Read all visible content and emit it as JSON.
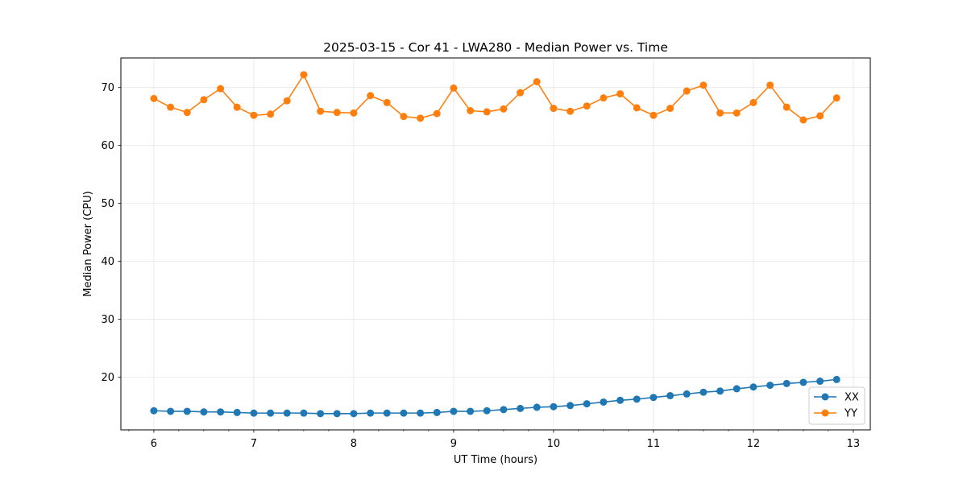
{
  "chart_data": {
    "type": "line",
    "title": "2025-03-15 - Cor 41 - LWA280 - Median Power vs. Time",
    "xlabel": "UT Time (hours)",
    "ylabel": "Median Power (CPU)",
    "xlim": [
      5.67,
      13.17
    ],
    "ylim": [
      10.9,
      75.1
    ],
    "xticks": [
      6,
      7,
      8,
      9,
      10,
      11,
      12,
      13
    ],
    "xtick_labels": [
      "6",
      "7",
      "8",
      "9",
      "10",
      "11",
      "12",
      "13"
    ],
    "xminor_step": 0.25,
    "yticks": [
      20,
      30,
      40,
      50,
      60,
      70
    ],
    "ytick_labels": [
      "20",
      "30",
      "40",
      "50",
      "60",
      "70"
    ],
    "grid": true,
    "legend_position": "lower-right",
    "x": [
      6.0,
      6.167,
      6.333,
      6.5,
      6.667,
      6.833,
      7.0,
      7.167,
      7.333,
      7.5,
      7.667,
      7.833,
      8.0,
      8.167,
      8.333,
      8.5,
      8.667,
      8.833,
      9.0,
      9.167,
      9.333,
      9.5,
      9.667,
      9.833,
      10.0,
      10.167,
      10.333,
      10.5,
      10.667,
      10.833,
      11.0,
      11.167,
      11.333,
      11.5,
      11.667,
      11.833,
      12.0,
      12.167,
      12.333,
      12.5,
      12.667,
      12.833
    ],
    "series": [
      {
        "name": "XX",
        "color": "#1f77b4",
        "values": [
          14.2,
          14.1,
          14.1,
          14.0,
          14.0,
          13.9,
          13.8,
          13.8,
          13.8,
          13.8,
          13.7,
          13.7,
          13.7,
          13.8,
          13.8,
          13.8,
          13.8,
          13.9,
          14.1,
          14.1,
          14.2,
          14.4,
          14.6,
          14.8,
          14.9,
          15.1,
          15.4,
          15.7,
          16.0,
          16.2,
          16.5,
          16.8,
          17.1,
          17.4,
          17.6,
          18.0,
          18.3,
          18.6,
          18.9,
          19.1,
          19.3,
          19.6
        ]
      },
      {
        "name": "YY",
        "color": "#ff7f0e",
        "values": [
          68.1,
          66.6,
          65.7,
          67.9,
          69.8,
          66.6,
          65.2,
          65.4,
          67.7,
          72.2,
          65.9,
          65.7,
          65.6,
          68.6,
          67.4,
          65.0,
          64.7,
          65.5,
          69.9,
          66.0,
          65.8,
          66.3,
          69.1,
          71.0,
          66.4,
          65.9,
          66.8,
          68.2,
          68.9,
          66.5,
          65.2,
          66.4,
          69.4,
          70.4,
          65.6,
          65.6,
          67.4,
          70.4,
          66.6,
          64.4,
          65.1,
          68.2
        ]
      }
    ]
  }
}
